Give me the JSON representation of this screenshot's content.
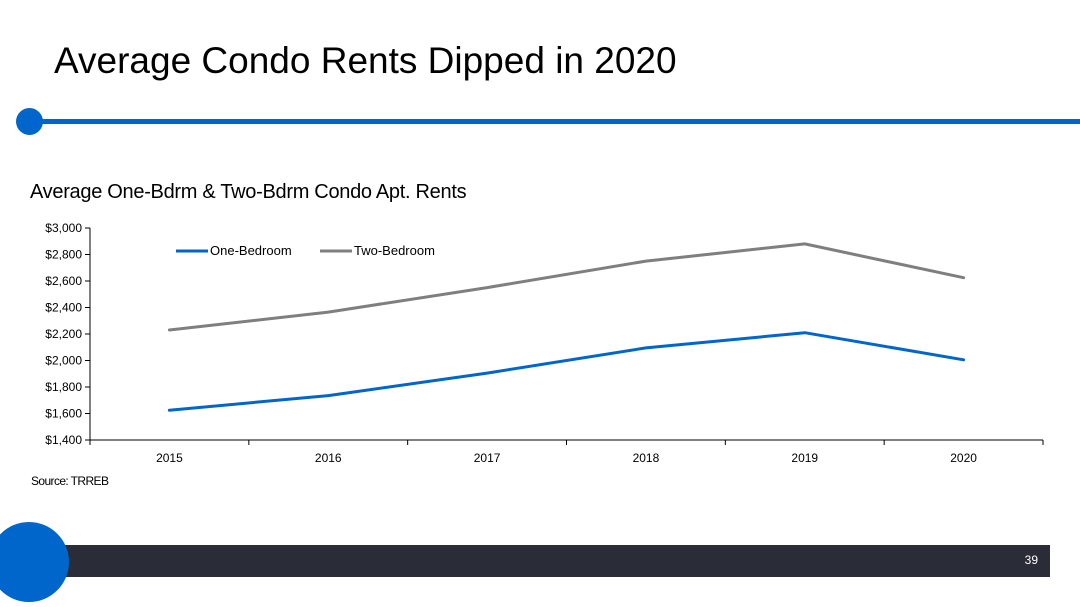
{
  "slide": {
    "title": "Average Condo Rents Dipped in 2020",
    "page_number": "39",
    "source": "Source: TRREB"
  },
  "colors": {
    "accent": "#0066cc",
    "footer": "#2a2d38",
    "one_bedroom": "#0066cc",
    "two_bedroom": "#7f7f7f",
    "axis": "#000000"
  },
  "chart_data": {
    "type": "line",
    "title": "Average One-Bdrm & Two-Bdrm Condo Apt. Rents",
    "xlabel": "",
    "ylabel": "",
    "categories": [
      "2015",
      "2016",
      "2017",
      "2018",
      "2019",
      "2020"
    ],
    "series": [
      {
        "name": "One-Bedroom",
        "values": [
          1625,
          1735,
          1905,
          2095,
          2210,
          2005
        ]
      },
      {
        "name": "Two-Bedroom",
        "values": [
          2230,
          2365,
          2550,
          2750,
          2880,
          2625
        ]
      }
    ],
    "ylim": [
      1400,
      3000
    ],
    "yticks": [
      1400,
      1600,
      1800,
      2000,
      2200,
      2400,
      2600,
      2800,
      3000
    ],
    "ytick_labels": [
      "$1,400",
      "$1,600",
      "$1,800",
      "$2,000",
      "$2,200",
      "$2,400",
      "$2,600",
      "$2,800",
      "$3,000"
    ],
    "grid": false,
    "legend": "top-left"
  }
}
